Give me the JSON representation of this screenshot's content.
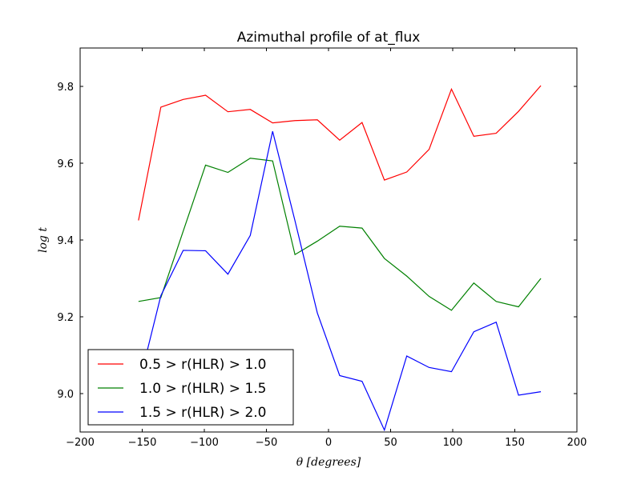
{
  "chart_data": {
    "type": "line",
    "title": "Azimuthal profile of at_flux",
    "xlabel": "θ [degrees]",
    "ylabel": "log t",
    "xlim": [
      -200,
      200
    ],
    "ylim": [
      8.9,
      9.9
    ],
    "xticks": [
      -200,
      -150,
      -100,
      -50,
      0,
      50,
      100,
      150,
      200
    ],
    "yticks": [
      9.0,
      9.2,
      9.4,
      9.6,
      9.8
    ],
    "xtick_labels": [
      "−200",
      "−150",
      "−100",
      "−50",
      "0",
      "50",
      "100",
      "150",
      "200"
    ],
    "ytick_labels": [
      "9.0",
      "9.2",
      "9.4",
      "9.6",
      "9.8"
    ],
    "grid": false,
    "legend_position": "lower-left",
    "x": [
      -153,
      -135,
      -117,
      -99,
      -81,
      -63,
      -45,
      -27,
      -9,
      9,
      27,
      45,
      63,
      81,
      99,
      117,
      135,
      153,
      171
    ],
    "series": [
      {
        "name": "0.5 > r(HLR) > 1.0",
        "color": "#ff0000",
        "values": [
          9.451,
          9.746,
          9.766,
          9.777,
          9.734,
          9.74,
          9.705,
          9.711,
          9.713,
          9.66,
          9.706,
          9.556,
          9.577,
          9.636,
          9.793,
          9.67,
          9.678,
          9.735,
          9.802
        ]
      },
      {
        "name": "1.0 > r(HLR) > 1.5",
        "color": "#008000",
        "values": [
          9.24,
          9.25,
          9.423,
          9.595,
          9.576,
          9.613,
          9.606,
          9.362,
          9.397,
          9.436,
          9.431,
          9.352,
          9.306,
          9.253,
          9.217,
          9.288,
          9.24,
          9.226,
          9.3
        ]
      },
      {
        "name": "1.5 > r(HLR) > 2.0",
        "color": "#0000ff",
        "values": [
          9.02,
          9.255,
          9.373,
          9.372,
          9.311,
          9.412,
          9.683,
          9.45,
          9.21,
          9.047,
          9.032,
          8.905,
          9.098,
          9.068,
          9.057,
          9.161,
          9.186,
          8.996,
          9.005
        ]
      }
    ]
  }
}
